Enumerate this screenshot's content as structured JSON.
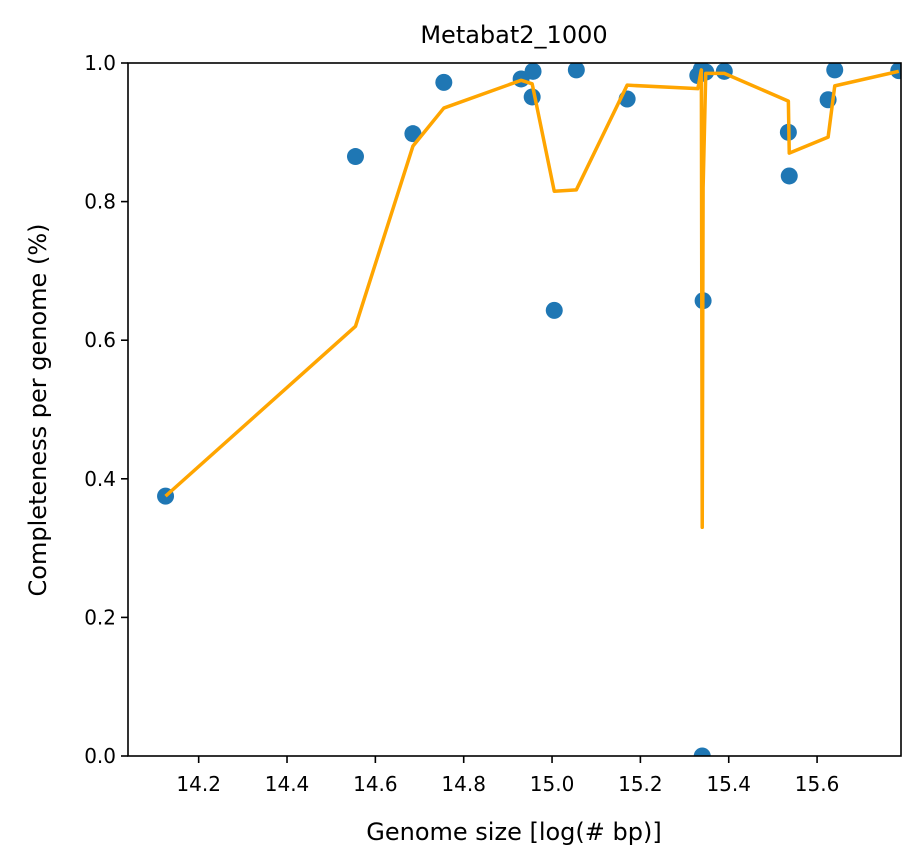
{
  "chart_data": {
    "type": "scatter",
    "title": "Metabat2_1000",
    "xlabel": "Genome size [log(# bp)]",
    "ylabel": "Completeness per genome (%)",
    "xlim": [
      14.04,
      15.79
    ],
    "ylim": [
      0.0,
      1.0
    ],
    "xticks": [
      14.2,
      14.4,
      14.6,
      14.8,
      15.0,
      15.2,
      15.4,
      15.6
    ],
    "xtick_labels": [
      "14.2",
      "14.4",
      "14.6",
      "14.8",
      "15.0",
      "15.2",
      "15.4",
      "15.6"
    ],
    "yticks": [
      0.0,
      0.2,
      0.4,
      0.6,
      0.8,
      1.0
    ],
    "ytick_labels": [
      "0.0",
      "0.2",
      "0.4",
      "0.6",
      "0.8",
      "1.0"
    ],
    "grid": false,
    "colors": {
      "points": "#1f77b4",
      "line": "#ffa500"
    },
    "series": [
      {
        "kind": "scatter",
        "x": [
          14.125,
          14.555,
          14.685,
          14.755,
          14.93,
          14.955,
          14.957,
          15.005,
          15.055,
          15.17,
          15.33,
          15.338,
          15.34,
          15.342,
          15.348,
          15.39,
          15.535,
          15.537,
          15.625,
          15.64,
          15.785
        ],
        "y": [
          0.375,
          0.865,
          0.898,
          0.972,
          0.977,
          0.951,
          0.988,
          0.643,
          0.99,
          0.948,
          0.982,
          0.991,
          0.0,
          0.657,
          0.987,
          0.988,
          0.9,
          0.837,
          0.947,
          0.99,
          0.989
        ]
      },
      {
        "kind": "line",
        "x": [
          14.125,
          14.555,
          14.685,
          14.755,
          14.93,
          14.955,
          15.005,
          15.055,
          15.17,
          15.33,
          15.338,
          15.34,
          15.342,
          15.348,
          15.39,
          15.535,
          15.537,
          15.625,
          15.64,
          15.785
        ],
        "y": [
          0.375,
          0.62,
          0.88,
          0.935,
          0.975,
          0.97,
          0.815,
          0.817,
          0.968,
          0.963,
          0.99,
          0.33,
          0.82,
          0.985,
          0.985,
          0.945,
          0.87,
          0.893,
          0.967,
          0.988
        ]
      }
    ]
  }
}
